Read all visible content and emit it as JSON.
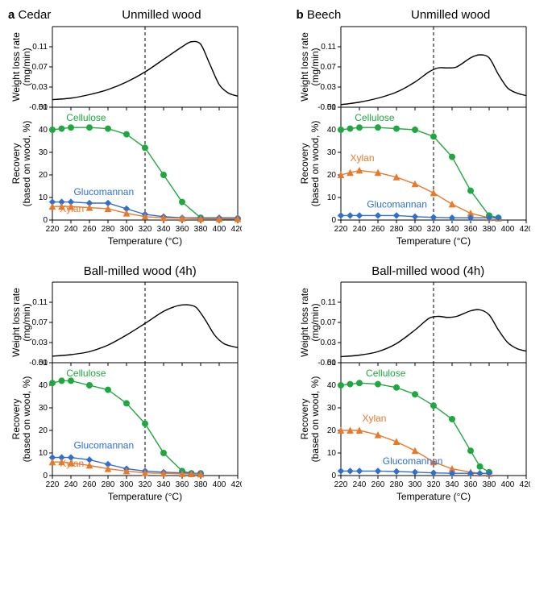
{
  "colors": {
    "axis": "#000000",
    "dashed": "#000000",
    "cellulose": "#1fa83f",
    "glucomannan": "#2f6fd0",
    "xylan": "#e8792b",
    "dtg": "#000000",
    "bg": "#ffffff"
  },
  "xdomain": [
    220,
    420
  ],
  "xticks": [
    220,
    240,
    260,
    280,
    300,
    320,
    340,
    360,
    380,
    400,
    420
  ],
  "vline_x": 320,
  "dtg": {
    "ylabel": "Weight loss rate\n(mg/min)",
    "ylim": [
      -0.01,
      0.15
    ],
    "yticks": [
      -0.01,
      0.03,
      0.07,
      0.11
    ]
  },
  "recovery": {
    "ylabel": "Recovery\n(based on wood, %)",
    "ylim": [
      0,
      50
    ],
    "yticks": [
      0,
      10,
      20,
      30,
      40,
      50
    ]
  },
  "xlabel": "Temperature (°C)",
  "label_fontsize": 12,
  "tick_fontsize": 10,
  "series_fontsize": 12,
  "panels": [
    {
      "id": "a_unmilled",
      "letter": "a",
      "species": "Cedar",
      "title": "Unmilled wood",
      "dtg_curve": [
        [
          220,
          0.005
        ],
        [
          240,
          0.008
        ],
        [
          260,
          0.015
        ],
        [
          280,
          0.025
        ],
        [
          300,
          0.04
        ],
        [
          320,
          0.06
        ],
        [
          340,
          0.085
        ],
        [
          360,
          0.11
        ],
        [
          370,
          0.12
        ],
        [
          380,
          0.115
        ],
        [
          390,
          0.075
        ],
        [
          400,
          0.035
        ],
        [
          410,
          0.018
        ],
        [
          420,
          0.012
        ]
      ],
      "series": [
        {
          "name": "Cellulose",
          "color": "cellulose",
          "marker": "circle",
          "label_xy": [
            235,
            44
          ],
          "pts": [
            [
              220,
              40
            ],
            [
              230,
              40.5
            ],
            [
              240,
              41
            ],
            [
              260,
              41
            ],
            [
              280,
              40.5
            ],
            [
              300,
              38
            ],
            [
              320,
              32
            ],
            [
              340,
              20
            ],
            [
              360,
              8
            ],
            [
              380,
              1
            ],
            [
              400,
              0.5
            ],
            [
              420,
              0.5
            ]
          ]
        },
        {
          "name": "Glucomannan",
          "color": "glucomannan",
          "marker": "diamond",
          "label_xy": [
            243,
            11
          ],
          "pts": [
            [
              220,
              8
            ],
            [
              230,
              8
            ],
            [
              240,
              8
            ],
            [
              260,
              7.5
            ],
            [
              280,
              7.5
            ],
            [
              300,
              5
            ],
            [
              320,
              2.5
            ],
            [
              340,
              1.5
            ],
            [
              360,
              1
            ],
            [
              380,
              1
            ],
            [
              400,
              1
            ],
            [
              420,
              1
            ]
          ]
        },
        {
          "name": "Xylan",
          "color": "xylan",
          "marker": "triangle",
          "label_xy": [
            228,
            3.5
          ],
          "pts": [
            [
              220,
              6
            ],
            [
              230,
              6
            ],
            [
              240,
              6
            ],
            [
              260,
              5.5
            ],
            [
              280,
              5
            ],
            [
              300,
              3
            ],
            [
              320,
              1.5
            ],
            [
              340,
              1
            ],
            [
              360,
              0.8
            ],
            [
              380,
              0.6
            ],
            [
              400,
              0.5
            ],
            [
              420,
              0.5
            ]
          ]
        }
      ]
    },
    {
      "id": "b_unmilled",
      "letter": "b",
      "species": "Beech",
      "title": "Unmilled wood",
      "dtg_curve": [
        [
          220,
          -0.005
        ],
        [
          240,
          0.0
        ],
        [
          260,
          0.008
        ],
        [
          280,
          0.02
        ],
        [
          300,
          0.04
        ],
        [
          315,
          0.06
        ],
        [
          325,
          0.068
        ],
        [
          335,
          0.068
        ],
        [
          345,
          0.07
        ],
        [
          360,
          0.088
        ],
        [
          370,
          0.094
        ],
        [
          380,
          0.088
        ],
        [
          390,
          0.055
        ],
        [
          400,
          0.028
        ],
        [
          410,
          0.018
        ],
        [
          420,
          0.013
        ]
      ],
      "series": [
        {
          "name": "Cellulose",
          "color": "cellulose",
          "marker": "circle",
          "label_xy": [
            235,
            44
          ],
          "pts": [
            [
              220,
              40
            ],
            [
              230,
              40.5
            ],
            [
              240,
              41
            ],
            [
              260,
              41
            ],
            [
              280,
              40.5
            ],
            [
              300,
              40
            ],
            [
              320,
              37
            ],
            [
              340,
              28
            ],
            [
              360,
              13
            ],
            [
              380,
              2
            ],
            [
              390,
              1
            ]
          ]
        },
        {
          "name": "Xylan",
          "color": "xylan",
          "marker": "triangle",
          "label_xy": [
            230,
            26
          ],
          "pts": [
            [
              220,
              20
            ],
            [
              230,
              21
            ],
            [
              240,
              22
            ],
            [
              260,
              21
            ],
            [
              280,
              19
            ],
            [
              300,
              16
            ],
            [
              320,
              12
            ],
            [
              340,
              7
            ],
            [
              360,
              3
            ],
            [
              380,
              1
            ],
            [
              390,
              0.8
            ]
          ]
        },
        {
          "name": "Glucomannan",
          "color": "glucomannan",
          "marker": "diamond",
          "label_xy": [
            248,
            5.5
          ],
          "pts": [
            [
              220,
              2
            ],
            [
              230,
              2
            ],
            [
              240,
              2
            ],
            [
              260,
              2
            ],
            [
              280,
              2
            ],
            [
              300,
              1.5
            ],
            [
              320,
              1.2
            ],
            [
              340,
              1
            ],
            [
              360,
              1
            ],
            [
              380,
              1
            ],
            [
              390,
              1
            ]
          ]
        }
      ]
    },
    {
      "id": "a_milled",
      "title": "Ball-milled wood (4h)",
      "dtg_curve": [
        [
          220,
          0.003
        ],
        [
          240,
          0.006
        ],
        [
          260,
          0.012
        ],
        [
          280,
          0.025
        ],
        [
          300,
          0.045
        ],
        [
          320,
          0.068
        ],
        [
          340,
          0.092
        ],
        [
          355,
          0.103
        ],
        [
          365,
          0.105
        ],
        [
          375,
          0.1
        ],
        [
          385,
          0.075
        ],
        [
          395,
          0.045
        ],
        [
          405,
          0.028
        ],
        [
          415,
          0.022
        ],
        [
          420,
          0.02
        ]
      ],
      "series": [
        {
          "name": "Cellulose",
          "color": "cellulose",
          "marker": "circle",
          "label_xy": [
            235,
            44
          ],
          "pts": [
            [
              220,
              41
            ],
            [
              230,
              42
            ],
            [
              240,
              42
            ],
            [
              260,
              40
            ],
            [
              280,
              38
            ],
            [
              300,
              32
            ],
            [
              320,
              23
            ],
            [
              340,
              10
            ],
            [
              360,
              2
            ],
            [
              370,
              1
            ],
            [
              380,
              1
            ]
          ]
        },
        {
          "name": "Glucomannan",
          "color": "glucomannan",
          "marker": "diamond",
          "label_xy": [
            243,
            12
          ],
          "pts": [
            [
              220,
              8
            ],
            [
              230,
              8
            ],
            [
              240,
              8
            ],
            [
              260,
              7
            ],
            [
              280,
              5
            ],
            [
              300,
              3
            ],
            [
              320,
              2
            ],
            [
              340,
              1.5
            ],
            [
              360,
              1.2
            ],
            [
              370,
              1
            ],
            [
              380,
              1
            ]
          ]
        },
        {
          "name": "Xylan",
          "color": "xylan",
          "marker": "triangle",
          "label_xy": [
            228,
            4
          ],
          "pts": [
            [
              220,
              6
            ],
            [
              230,
              6
            ],
            [
              240,
              5.5
            ],
            [
              260,
              4.5
            ],
            [
              280,
              3
            ],
            [
              300,
              2
            ],
            [
              320,
              1.2
            ],
            [
              340,
              1
            ],
            [
              360,
              0.8
            ],
            [
              370,
              0.7
            ],
            [
              380,
              0.6
            ]
          ]
        }
      ]
    },
    {
      "id": "b_milled",
      "title": "Ball-milled wood (4h)",
      "dtg_curve": [
        [
          220,
          0.002
        ],
        [
          240,
          0.005
        ],
        [
          260,
          0.012
        ],
        [
          280,
          0.028
        ],
        [
          300,
          0.055
        ],
        [
          315,
          0.078
        ],
        [
          325,
          0.082
        ],
        [
          335,
          0.08
        ],
        [
          345,
          0.082
        ],
        [
          360,
          0.093
        ],
        [
          370,
          0.095
        ],
        [
          380,
          0.085
        ],
        [
          390,
          0.055
        ],
        [
          400,
          0.03
        ],
        [
          410,
          0.018
        ],
        [
          420,
          0.013
        ]
      ],
      "series": [
        {
          "name": "Cellulose",
          "color": "cellulose",
          "marker": "circle",
          "label_xy": [
            247,
            44
          ],
          "pts": [
            [
              220,
              40
            ],
            [
              230,
              40.5
            ],
            [
              240,
              41
            ],
            [
              260,
              40.5
            ],
            [
              280,
              39
            ],
            [
              300,
              36
            ],
            [
              320,
              31
            ],
            [
              340,
              25
            ],
            [
              360,
              11
            ],
            [
              370,
              4
            ],
            [
              380,
              1.5
            ]
          ]
        },
        {
          "name": "Xylan",
          "color": "xylan",
          "marker": "triangle",
          "label_xy": [
            243,
            24
          ],
          "pts": [
            [
              220,
              20
            ],
            [
              230,
              20
            ],
            [
              240,
              20
            ],
            [
              260,
              18
            ],
            [
              280,
              15
            ],
            [
              300,
              11
            ],
            [
              320,
              6
            ],
            [
              340,
              3
            ],
            [
              360,
              1.5
            ],
            [
              370,
              1
            ],
            [
              380,
              0.8
            ]
          ]
        },
        {
          "name": "Glucomannan",
          "color": "glucomannan",
          "marker": "diamond",
          "label_xy": [
            265,
            5
          ],
          "pts": [
            [
              220,
              2
            ],
            [
              230,
              2
            ],
            [
              240,
              2
            ],
            [
              260,
              2
            ],
            [
              280,
              1.8
            ],
            [
              300,
              1.5
            ],
            [
              320,
              1.2
            ],
            [
              340,
              1
            ],
            [
              360,
              1
            ],
            [
              370,
              1
            ],
            [
              380,
              1
            ]
          ]
        }
      ]
    }
  ]
}
